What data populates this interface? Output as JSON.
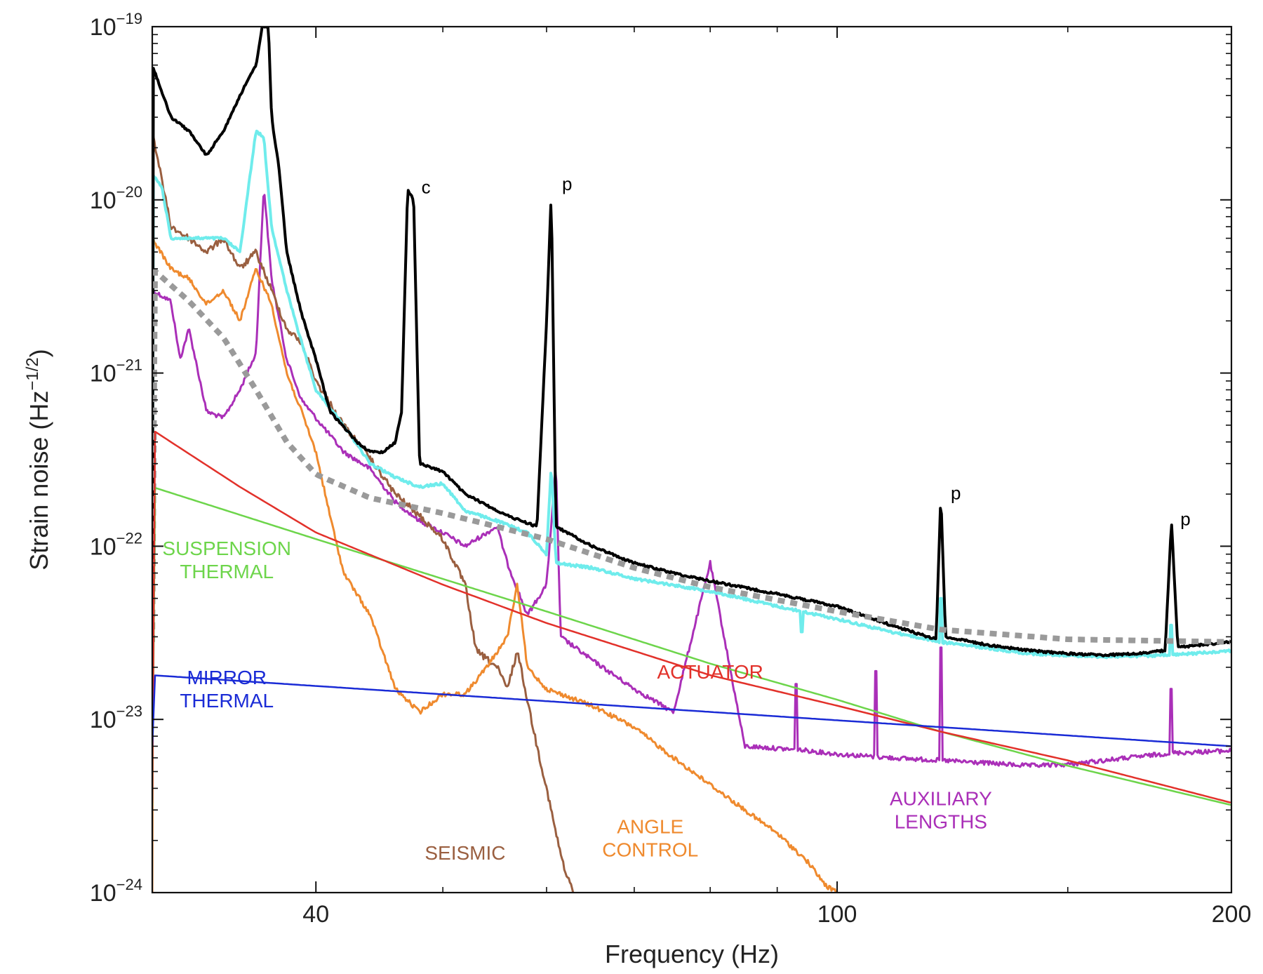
{
  "chart_data": {
    "type": "line",
    "title": "",
    "xlabel": "Frequency (Hz)",
    "ylabel_parts": {
      "main": "Strain noise (Hz",
      "sup": "−1/2",
      "end": ")"
    },
    "x_scale": "log",
    "y_scale": "log",
    "xlim": [
      30,
      200
    ],
    "ylim": [
      1e-24,
      1e-19
    ],
    "x_ticks": [
      {
        "value": 40,
        "label": "40"
      },
      {
        "value": 100,
        "label": "100"
      },
      {
        "value": 200,
        "label": "200"
      }
    ],
    "x_minor_ticks": [
      30,
      50,
      60,
      70,
      80,
      90,
      150
    ],
    "y_ticks": [
      {
        "value": 1e-19,
        "base": "10",
        "exp": "−19"
      },
      {
        "value": 1e-20,
        "base": "10",
        "exp": "−20"
      },
      {
        "value": 1e-21,
        "base": "10",
        "exp": "−21"
      },
      {
        "value": 1e-22,
        "base": "10",
        "exp": "−22"
      },
      {
        "value": 1e-23,
        "base": "10",
        "exp": "−23"
      },
      {
        "value": 1e-24,
        "base": "10",
        "exp": "−24"
      }
    ],
    "grid": false,
    "series": [
      {
        "label_lines": [
          "AUXILIARY",
          "LENGTHS"
        ],
        "label_pos": [
          120,
          3.2e-24
        ],
        "color": "#aa2fb8",
        "width": 3,
        "dashed": false,
        "jitter": 0.07,
        "points": [
          [
            30,
            3e-21
          ],
          [
            31,
            2.6e-21
          ],
          [
            31.5,
            1.2e-21
          ],
          [
            32,
            1.8e-21
          ],
          [
            33,
            6e-22
          ],
          [
            34,
            5.5e-22
          ],
          [
            35,
            8e-22
          ],
          [
            36,
            1.3e-21
          ],
          [
            36.5,
            1.2e-20
          ],
          [
            37,
            3.5e-21
          ],
          [
            38,
            1.2e-21
          ],
          [
            39,
            7e-22
          ],
          [
            40,
            5.5e-22
          ],
          [
            42,
            3.5e-22
          ],
          [
            44,
            2.8e-22
          ],
          [
            46,
            1.8e-22
          ],
          [
            48,
            1.4e-22
          ],
          [
            50,
            1.2e-22
          ],
          [
            52,
            1e-22
          ],
          [
            55,
            1.3e-22
          ],
          [
            56,
            8e-23
          ],
          [
            58,
            4e-23
          ],
          [
            60,
            6e-23
          ],
          [
            61,
            3e-22
          ],
          [
            61.5,
            3e-23
          ],
          [
            65,
            2.2e-23
          ],
          [
            70,
            1.5e-23
          ],
          [
            75,
            1.1e-23
          ],
          [
            80,
            8e-23
          ],
          [
            85,
            7e-24
          ],
          [
            90,
            6.8e-24
          ],
          [
            95,
            6.6e-24
          ],
          [
            100,
            6.3e-24
          ],
          [
            110,
            6e-24
          ],
          [
            120,
            5.8e-24
          ],
          [
            130,
            5.6e-24
          ],
          [
            140,
            5.4e-24
          ],
          [
            150,
            5.5e-24
          ],
          [
            160,
            5.8e-24
          ],
          [
            170,
            6.1e-24
          ],
          [
            180,
            6.4e-24
          ],
          [
            190,
            6.5e-24
          ],
          [
            200,
            6.6e-24
          ]
        ],
        "spikes": [
          [
            93,
            1.6e-23
          ],
          [
            107,
            1.9e-23
          ],
          [
            120,
            2.6e-23
          ],
          [
            180,
            1.5e-23
          ]
        ]
      },
      {
        "label_lines": [
          "SEISMIC"
        ],
        "label_pos": [
          52,
          1.55e-24
        ],
        "color": "#9a5f40",
        "width": 3,
        "dashed": false,
        "jitter": 0.1,
        "points": [
          [
            30,
            2.5e-20
          ],
          [
            31,
            7e-21
          ],
          [
            32,
            6e-21
          ],
          [
            33,
            5e-21
          ],
          [
            34,
            6e-21
          ],
          [
            35,
            4e-21
          ],
          [
            36,
            5e-21
          ],
          [
            37,
            3e-21
          ],
          [
            38,
            1.8e-21
          ],
          [
            39,
            1.5e-21
          ],
          [
            40,
            9e-22
          ],
          [
            42,
            5e-22
          ],
          [
            44,
            3.2e-22
          ],
          [
            46,
            2e-22
          ],
          [
            48,
            1.5e-22
          ],
          [
            50,
            1.1e-22
          ],
          [
            52,
            6e-23
          ],
          [
            53,
            2.5e-23
          ],
          [
            55,
            2e-23
          ],
          [
            56,
            1.5e-23
          ],
          [
            57,
            2.5e-23
          ],
          [
            58,
            1.3e-23
          ],
          [
            59,
            7e-24
          ],
          [
            60,
            4e-24
          ],
          [
            61,
            2.2e-24
          ],
          [
            62,
            1.3e-24
          ],
          [
            63,
            1e-24
          ]
        ]
      },
      {
        "label_lines": [
          "ANGLE",
          "CONTROL"
        ],
        "label_pos": [
          72,
          2.2e-24
        ],
        "color": "#ef8a2e",
        "width": 3,
        "dashed": false,
        "jitter": 0.07,
        "points": [
          [
            30,
            6e-21
          ],
          [
            31,
            4e-21
          ],
          [
            32,
            3.5e-21
          ],
          [
            33,
            2.5e-21
          ],
          [
            34,
            3e-21
          ],
          [
            35,
            2e-21
          ],
          [
            36,
            4e-21
          ],
          [
            37,
            2.5e-21
          ],
          [
            38,
            1e-21
          ],
          [
            39,
            6e-22
          ],
          [
            40,
            3.5e-22
          ],
          [
            41,
            1.5e-22
          ],
          [
            42,
            7e-23
          ],
          [
            44,
            4e-23
          ],
          [
            46,
            1.5e-23
          ],
          [
            48,
            1.1e-23
          ],
          [
            50,
            1.4e-23
          ],
          [
            52,
            1.4e-23
          ],
          [
            54,
            2e-23
          ],
          [
            56,
            3e-23
          ],
          [
            57,
            6e-23
          ],
          [
            58,
            2e-23
          ],
          [
            60,
            1.5e-23
          ],
          [
            65,
            1.2e-23
          ],
          [
            70,
            9e-24
          ],
          [
            75,
            6e-24
          ],
          [
            80,
            4.2e-24
          ],
          [
            85,
            3e-24
          ],
          [
            90,
            2.2e-24
          ],
          [
            95,
            1.5e-24
          ],
          [
            98,
            1.1e-24
          ],
          [
            100,
            1e-24
          ]
        ]
      },
      {
        "label_lines": [],
        "color": "#6fecec",
        "width": 4,
        "dashed": false,
        "jitter": 0.04,
        "points": [
          [
            30,
            1.4e-20
          ],
          [
            30.5,
            1.2e-20
          ],
          [
            31,
            6e-21
          ],
          [
            32,
            6e-21
          ],
          [
            34,
            6e-21
          ],
          [
            35,
            5e-21
          ],
          [
            36,
            2.5e-20
          ],
          [
            36.5,
            2.3e-20
          ],
          [
            37,
            7e-21
          ],
          [
            38,
            3e-21
          ],
          [
            39,
            1.5e-21
          ],
          [
            40,
            8e-22
          ],
          [
            42,
            5e-22
          ],
          [
            44,
            3e-22
          ],
          [
            46,
            2.5e-22
          ],
          [
            48,
            2.2e-22
          ],
          [
            50,
            2.3e-22
          ],
          [
            52,
            1.6e-22
          ],
          [
            55,
            1.4e-22
          ],
          [
            58,
            1.2e-22
          ],
          [
            60,
            9e-23
          ],
          [
            60.5,
            3e-22
          ],
          [
            61,
            8e-23
          ],
          [
            65,
            7.5e-23
          ],
          [
            70,
            6.5e-23
          ],
          [
            80,
            5.5e-23
          ],
          [
            90,
            4.5e-23
          ],
          [
            100,
            3.8e-23
          ],
          [
            110,
            3.2e-23
          ],
          [
            120,
            2.8e-23
          ],
          [
            140,
            2.4e-23
          ],
          [
            160,
            2.3e-23
          ],
          [
            180,
            2.35e-23
          ],
          [
            200,
            2.5e-23
          ]
        ],
        "spikes": [
          [
            94,
            3.2e-23
          ],
          [
            120,
            5e-23
          ],
          [
            180,
            3.5e-23
          ]
        ]
      },
      {
        "label_lines": [],
        "color": "#000000",
        "width": 4,
        "dashed": false,
        "jitter": 0.035,
        "points": [
          [
            30,
            6e-20
          ],
          [
            31,
            3e-20
          ],
          [
            32,
            2.5e-20
          ],
          [
            33,
            1.8e-20
          ],
          [
            34,
            2.5e-20
          ],
          [
            35,
            4e-20
          ],
          [
            36,
            6e-20
          ],
          [
            36.4,
            1e-19
          ],
          [
            36.8,
            1e-19
          ],
          [
            37,
            3e-20
          ],
          [
            37.5,
            1.5e-20
          ],
          [
            38,
            5e-21
          ],
          [
            39,
            2.2e-21
          ],
          [
            40,
            1.2e-21
          ],
          [
            41,
            6e-22
          ],
          [
            43,
            4e-22
          ],
          [
            44,
            3.5e-22
          ],
          [
            45,
            3.5e-22
          ],
          [
            46,
            4e-22
          ],
          [
            46.5,
            6e-22
          ],
          [
            47,
            1.15e-20
          ],
          [
            47.5,
            1e-20
          ],
          [
            48,
            3e-22
          ],
          [
            50,
            2.7e-22
          ],
          [
            52,
            2e-22
          ],
          [
            56,
            1.5e-22
          ],
          [
            59,
            1.3e-22
          ],
          [
            60,
            2e-21
          ],
          [
            60.5,
            1.1e-20
          ],
          [
            61,
            1.3e-22
          ],
          [
            65,
            1e-22
          ],
          [
            70,
            8e-23
          ],
          [
            75,
            7e-23
          ],
          [
            80,
            6.3e-23
          ],
          [
            90,
            5.3e-23
          ],
          [
            100,
            4.5e-23
          ],
          [
            110,
            3.5e-23
          ],
          [
            119,
            2.9e-23
          ],
          [
            120,
            2e-22
          ],
          [
            121,
            3e-23
          ],
          [
            130,
            2.7e-23
          ],
          [
            140,
            2.5e-23
          ],
          [
            150,
            2.4e-23
          ],
          [
            160,
            2.35e-23
          ],
          [
            170,
            2.4e-23
          ],
          [
            178,
            2.5e-23
          ],
          [
            180,
            1.4e-22
          ],
          [
            182,
            2.6e-23
          ],
          [
            190,
            2.7e-23
          ],
          [
            200,
            2.8e-23
          ]
        ]
      },
      {
        "label_lines": [],
        "color": "#9a9a9a",
        "width": 8,
        "dashed": true,
        "jitter": 0,
        "points": [
          [
            30,
            4e-21
          ],
          [
            32,
            2.6e-21
          ],
          [
            34,
            1.6e-21
          ],
          [
            36,
            8e-22
          ],
          [
            38,
            4e-22
          ],
          [
            40,
            2.6e-22
          ],
          [
            44,
            1.9e-22
          ],
          [
            50,
            1.55e-22
          ],
          [
            60,
            1.1e-22
          ],
          [
            70,
            7.5e-23
          ],
          [
            80,
            5.8e-23
          ],
          [
            100,
            4.2e-23
          ],
          [
            120,
            3.3e-23
          ],
          [
            150,
            2.9e-23
          ],
          [
            200,
            2.8e-23
          ]
        ]
      },
      {
        "label_lines": [
          "SUSPENSION",
          "THERMAL"
        ],
        "label_pos": [
          34.2,
          8.9e-23
        ],
        "color": "#6dd54b",
        "width": 2.5,
        "dashed": false,
        "jitter": 0,
        "points": [
          [
            30,
            2.2e-22
          ],
          [
            40,
            1.1e-22
          ],
          [
            60,
            4.2e-23
          ],
          [
            80,
            2.1e-23
          ],
          [
            100,
            1.3e-23
          ],
          [
            120,
            8.5e-24
          ],
          [
            150,
            5.4e-24
          ],
          [
            200,
            3.2e-24
          ]
        ]
      },
      {
        "label_lines": [
          "ACTUATOR"
        ],
        "label_pos": [
          80,
          1.72e-23
        ],
        "color": "#e2312a",
        "width": 2.5,
        "dashed": false,
        "jitter": 0,
        "points": [
          [
            30,
            4.7e-22
          ],
          [
            35,
            2.2e-22
          ],
          [
            40,
            1.2e-22
          ],
          [
            50,
            6e-23
          ],
          [
            60,
            3.6e-23
          ],
          [
            80,
            1.8e-23
          ],
          [
            100,
            1.2e-23
          ],
          [
            120,
            8.5e-24
          ],
          [
            150,
            5.8e-24
          ],
          [
            200,
            3.3e-24
          ]
        ]
      },
      {
        "label_lines": [
          "MIRROR",
          "THERMAL"
        ],
        "label_pos": [
          34.2,
          1.6e-23
        ],
        "color": "#1a2bd6",
        "width": 2.5,
        "dashed": false,
        "jitter": 0,
        "points": [
          [
            30,
            1.8e-23
          ],
          [
            200,
            7e-24
          ]
        ]
      }
    ],
    "peak_labels": [
      {
        "text": "c",
        "x": 47.8,
        "y": 1.2e-20
      },
      {
        "text": "p",
        "x": 61.2,
        "y": 1.25e-20
      },
      {
        "text": "p",
        "x": 121.2,
        "y": 2.05e-22
      },
      {
        "text": "p",
        "x": 181.5,
        "y": 1.45e-22
      }
    ]
  }
}
